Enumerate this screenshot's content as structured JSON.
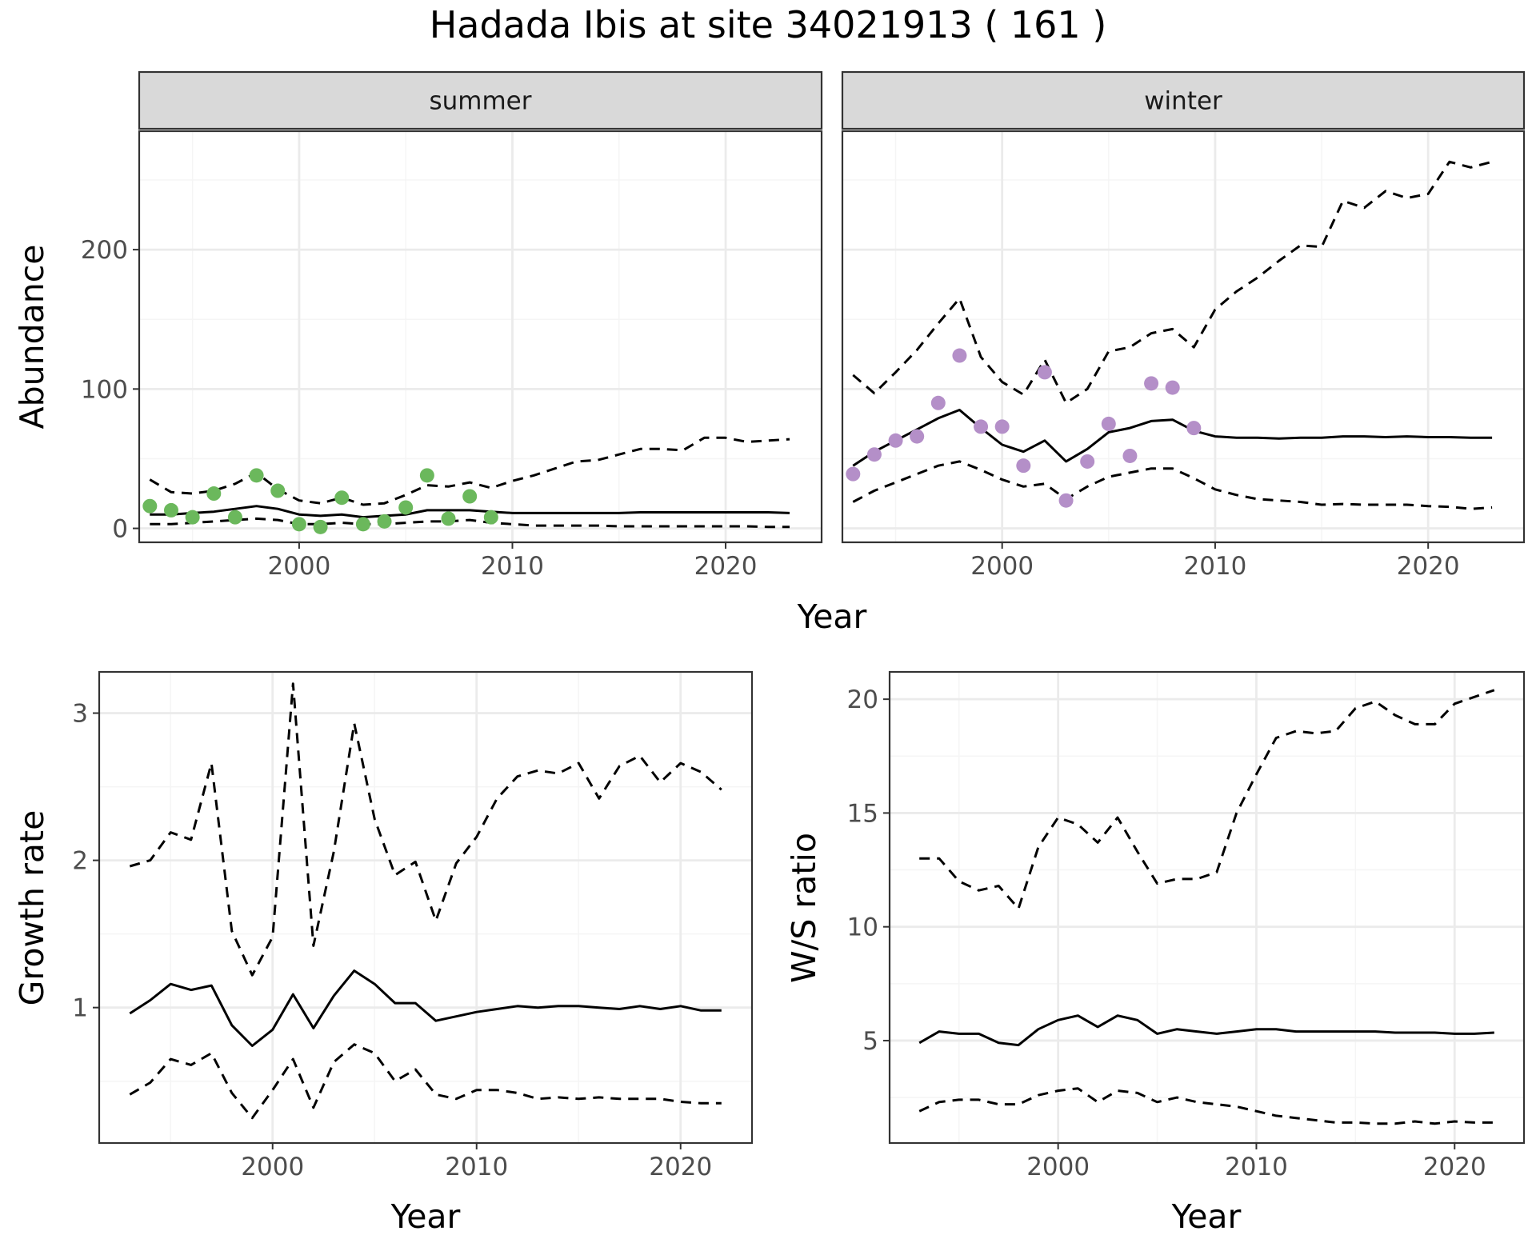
{
  "title": "Hadada Ibis at site 34021913 ( 161 )",
  "chart_data": [
    {
      "type": "line",
      "facet": "summer",
      "ylabel": "Abundance",
      "xlabel": "Year",
      "xlim": [
        1992.5,
        2024.5
      ],
      "ylim": [
        -10,
        285
      ],
      "x_ticks": [
        2000,
        2010,
        2020
      ],
      "y_ticks": [
        0,
        100,
        200
      ],
      "grid": true,
      "series": [
        {
          "role": "estimate",
          "style": "solid",
          "x": [
            1993,
            1994,
            1995,
            1996,
            1997,
            1998,
            1999,
            2000,
            2001,
            2002,
            2003,
            2004,
            2005,
            2006,
            2007,
            2008,
            2009,
            2010,
            2011,
            2012,
            2013,
            2014,
            2015,
            2016,
            2017,
            2018,
            2019,
            2020,
            2021,
            2022,
            2023
          ],
          "y": [
            10,
            10,
            11,
            12,
            14,
            16,
            14,
            10,
            9,
            10,
            8,
            9,
            10,
            13,
            13,
            13,
            12,
            11,
            11,
            11,
            11,
            11,
            11,
            11.5,
            11.5,
            11.5,
            11.5,
            11.5,
            11.5,
            11.5,
            11
          ]
        },
        {
          "role": "upper",
          "style": "dashed",
          "x": [
            1993,
            1994,
            1995,
            1996,
            1997,
            1998,
            1999,
            2000,
            2001,
            2002,
            2003,
            2004,
            2005,
            2006,
            2007,
            2008,
            2009,
            2010,
            2011,
            2012,
            2013,
            2014,
            2015,
            2016,
            2017,
            2018,
            2019,
            2020,
            2021,
            2022,
            2023
          ],
          "y": [
            35,
            26,
            25,
            27,
            32,
            40,
            28,
            20,
            18,
            22,
            17,
            18,
            24,
            31,
            30,
            33,
            29,
            34,
            38,
            43,
            48,
            49,
            53,
            57,
            57,
            56,
            65,
            65,
            62,
            63,
            64
          ]
        },
        {
          "role": "lower",
          "style": "dashed",
          "x": [
            1993,
            1994,
            1995,
            1996,
            1997,
            1998,
            1999,
            2000,
            2001,
            2002,
            2003,
            2004,
            2005,
            2006,
            2007,
            2008,
            2009,
            2010,
            2011,
            2012,
            2013,
            2014,
            2015,
            2016,
            2017,
            2018,
            2019,
            2020,
            2021,
            2022,
            2023
          ],
          "y": [
            3,
            3,
            4,
            5,
            6,
            7,
            6,
            3,
            3,
            4,
            3,
            3,
            4,
            5,
            5,
            6,
            4,
            3,
            2,
            2,
            2,
            2,
            1.5,
            1.5,
            1.5,
            1.5,
            1.5,
            1.5,
            1.5,
            1,
            1
          ]
        }
      ],
      "points": {
        "color": "#6BB85C",
        "x": [
          1993,
          1994,
          1995,
          1996,
          1997,
          1998,
          1999,
          2000,
          2001,
          2002,
          2003,
          2004,
          2005,
          2006,
          2007,
          2008,
          2009
        ],
        "y": [
          16,
          13,
          8,
          25,
          8,
          38,
          27,
          3,
          1,
          22,
          3,
          5,
          15,
          38,
          7,
          23,
          8
        ]
      }
    },
    {
      "type": "line",
      "facet": "winter",
      "xlabel": "Year",
      "xlim": [
        1992.5,
        2024.5
      ],
      "ylim": [
        -10,
        285
      ],
      "x_ticks": [
        2000,
        2010,
        2020
      ],
      "grid": true,
      "series": [
        {
          "role": "estimate",
          "style": "solid",
          "x": [
            1993,
            1994,
            1995,
            1996,
            1997,
            1998,
            1999,
            2000,
            2001,
            2002,
            2003,
            2004,
            2005,
            2006,
            2007,
            2008,
            2009,
            2010,
            2011,
            2012,
            2013,
            2014,
            2015,
            2016,
            2017,
            2018,
            2019,
            2020,
            2021,
            2022,
            2023
          ],
          "y": [
            45,
            55,
            63,
            71,
            79,
            85,
            72,
            60,
            55,
            63,
            48,
            57,
            69,
            72,
            77,
            78,
            70,
            66,
            65,
            65,
            64.5,
            65,
            65,
            66,
            66,
            65.5,
            66,
            65.5,
            65.5,
            65,
            65
          ]
        },
        {
          "role": "upper",
          "style": "dashed",
          "x": [
            1993,
            1994,
            1995,
            1996,
            1997,
            1998,
            1999,
            2000,
            2001,
            2002,
            2003,
            2004,
            2005,
            2006,
            2007,
            2008,
            2009,
            2010,
            2011,
            2012,
            2013,
            2014,
            2015,
            2016,
            2017,
            2018,
            2019,
            2020,
            2021,
            2022,
            2023
          ],
          "y": [
            110,
            97,
            112,
            128,
            147,
            165,
            123,
            105,
            96,
            121,
            90,
            100,
            127,
            130,
            140,
            143,
            130,
            157,
            170,
            180,
            192,
            203,
            202,
            235,
            230,
            242,
            237,
            240,
            263,
            259,
            263
          ]
        },
        {
          "role": "lower",
          "style": "dashed",
          "x": [
            1993,
            1994,
            1995,
            1996,
            1997,
            1998,
            1999,
            2000,
            2001,
            2002,
            2003,
            2004,
            2005,
            2006,
            2007,
            2008,
            2009,
            2010,
            2011,
            2012,
            2013,
            2014,
            2015,
            2016,
            2017,
            2018,
            2019,
            2020,
            2021,
            2022,
            2023
          ],
          "y": [
            19,
            27,
            33,
            39,
            45,
            48,
            42,
            35,
            30,
            32,
            21,
            30,
            37,
            40,
            43,
            43,
            36,
            28,
            24,
            21,
            20,
            19,
            17,
            17.5,
            17,
            17,
            17,
            16,
            15.5,
            14,
            15
          ]
        }
      ],
      "points": {
        "color": "#B48FC8",
        "x": [
          1993,
          1994,
          1995,
          1996,
          1997,
          1998,
          1999,
          2000,
          2001,
          2002,
          2003,
          2004,
          2005,
          2006,
          2007,
          2008,
          2009
        ],
        "y": [
          39,
          53,
          63,
          66,
          90,
          124,
          73,
          73,
          45,
          112,
          20,
          48,
          75,
          52,
          104,
          101,
          72
        ]
      }
    },
    {
      "type": "line",
      "ylabel": "Growth rate",
      "xlabel": "Year",
      "xlim": [
        1991.5,
        2023.5
      ],
      "ylim": [
        0.08,
        3.28
      ],
      "x_ticks": [
        2000,
        2010,
        2020
      ],
      "y_ticks": [
        1,
        2,
        3
      ],
      "grid": true,
      "series": [
        {
          "role": "estimate",
          "style": "solid",
          "x": [
            1993,
            1994,
            1995,
            1996,
            1997,
            1998,
            1999,
            2000,
            2001,
            2002,
            2003,
            2004,
            2005,
            2006,
            2007,
            2008,
            2009,
            2010,
            2011,
            2012,
            2013,
            2014,
            2015,
            2016,
            2017,
            2018,
            2019,
            2020,
            2021,
            2022
          ],
          "y": [
            0.96,
            1.05,
            1.16,
            1.12,
            1.15,
            0.88,
            0.74,
            0.85,
            1.09,
            0.86,
            1.08,
            1.25,
            1.16,
            1.03,
            1.03,
            0.91,
            0.94,
            0.97,
            0.99,
            1.01,
            1.0,
            1.01,
            1.01,
            1.0,
            0.99,
            1.01,
            0.99,
            1.01,
            0.98,
            0.98
          ]
        },
        {
          "role": "upper",
          "style": "dashed",
          "x": [
            1993,
            1994,
            1995,
            1996,
            1997,
            1998,
            1999,
            2000,
            2001,
            2002,
            2003,
            2004,
            2005,
            2006,
            2007,
            2008,
            2009,
            2010,
            2011,
            2012,
            2013,
            2014,
            2015,
            2016,
            2017,
            2018,
            2019,
            2020,
            2021,
            2022
          ],
          "y": [
            1.96,
            2.0,
            2.19,
            2.14,
            2.66,
            1.52,
            1.22,
            1.48,
            3.2,
            1.42,
            2.06,
            2.93,
            2.28,
            1.9,
            1.99,
            1.59,
            1.98,
            2.16,
            2.42,
            2.57,
            2.61,
            2.59,
            2.66,
            2.42,
            2.64,
            2.71,
            2.53,
            2.66,
            2.6,
            2.48
          ]
        },
        {
          "role": "lower",
          "style": "dashed",
          "x": [
            1993,
            1994,
            1995,
            1996,
            1997,
            1998,
            1999,
            2000,
            2001,
            2002,
            2003,
            2004,
            2005,
            2006,
            2007,
            2008,
            2009,
            2010,
            2011,
            2012,
            2013,
            2014,
            2015,
            2016,
            2017,
            2018,
            2019,
            2020,
            2021,
            2022
          ],
          "y": [
            0.41,
            0.49,
            0.65,
            0.61,
            0.69,
            0.42,
            0.25,
            0.44,
            0.65,
            0.32,
            0.63,
            0.75,
            0.69,
            0.5,
            0.58,
            0.41,
            0.38,
            0.44,
            0.44,
            0.42,
            0.38,
            0.39,
            0.38,
            0.39,
            0.38,
            0.38,
            0.38,
            0.36,
            0.35,
            0.35
          ]
        }
      ]
    },
    {
      "type": "line",
      "ylabel": "W/S ratio",
      "xlabel": "Year",
      "xlim": [
        1991.5,
        2023.5
      ],
      "ylim": [
        0.5,
        21.2
      ],
      "x_ticks": [
        2000,
        2010,
        2020
      ],
      "y_ticks": [
        5,
        10,
        15,
        20
      ],
      "grid": true,
      "series": [
        {
          "role": "estimate",
          "style": "solid",
          "x": [
            1993,
            1994,
            1995,
            1996,
            1997,
            1998,
            1999,
            2000,
            2001,
            2002,
            2003,
            2004,
            2005,
            2006,
            2007,
            2008,
            2009,
            2010,
            2011,
            2012,
            2013,
            2014,
            2015,
            2016,
            2017,
            2018,
            2019,
            2020,
            2021,
            2022
          ],
          "y": [
            4.9,
            5.4,
            5.3,
            5.3,
            4.9,
            4.8,
            5.5,
            5.9,
            6.1,
            5.6,
            6.1,
            5.9,
            5.3,
            5.5,
            5.4,
            5.3,
            5.4,
            5.5,
            5.5,
            5.4,
            5.4,
            5.4,
            5.4,
            5.4,
            5.35,
            5.35,
            5.35,
            5.3,
            5.3,
            5.35
          ]
        },
        {
          "role": "upper",
          "style": "dashed",
          "x": [
            1993,
            1994,
            1995,
            1996,
            1997,
            1998,
            1999,
            2000,
            2001,
            2002,
            2003,
            2004,
            2005,
            2006,
            2007,
            2008,
            2009,
            2010,
            2011,
            2012,
            2013,
            2014,
            2015,
            2016,
            2017,
            2018,
            2019,
            2020,
            2021,
            2022
          ],
          "y": [
            13.0,
            13.0,
            12.0,
            11.6,
            11.8,
            10.8,
            13.5,
            14.8,
            14.5,
            13.7,
            14.8,
            13.3,
            11.9,
            12.1,
            12.1,
            12.4,
            15.0,
            16.7,
            18.3,
            18.6,
            18.5,
            18.6,
            19.6,
            19.9,
            19.3,
            18.9,
            18.9,
            19.8,
            20.1,
            20.4
          ]
        },
        {
          "role": "lower",
          "style": "dashed",
          "x": [
            1993,
            1994,
            1995,
            1996,
            1997,
            1998,
            1999,
            2000,
            2001,
            2002,
            2003,
            2004,
            2005,
            2006,
            2007,
            2008,
            2009,
            2010,
            2011,
            2012,
            2013,
            2014,
            2015,
            2016,
            2017,
            2018,
            2019,
            2020,
            2021,
            2022
          ],
          "y": [
            1.9,
            2.3,
            2.4,
            2.4,
            2.2,
            2.2,
            2.6,
            2.8,
            2.9,
            2.3,
            2.8,
            2.7,
            2.3,
            2.5,
            2.3,
            2.2,
            2.1,
            1.9,
            1.7,
            1.6,
            1.5,
            1.4,
            1.4,
            1.35,
            1.35,
            1.45,
            1.35,
            1.45,
            1.4,
            1.4
          ]
        }
      ]
    }
  ],
  "colors": {
    "strip_fill": "#D9D9D9",
    "panel_border": "#333333",
    "grid_major": "#EBEBEB",
    "grid_minor": "#F5F5F5",
    "tick_text": "#4D4D4D",
    "line": "#000000"
  }
}
